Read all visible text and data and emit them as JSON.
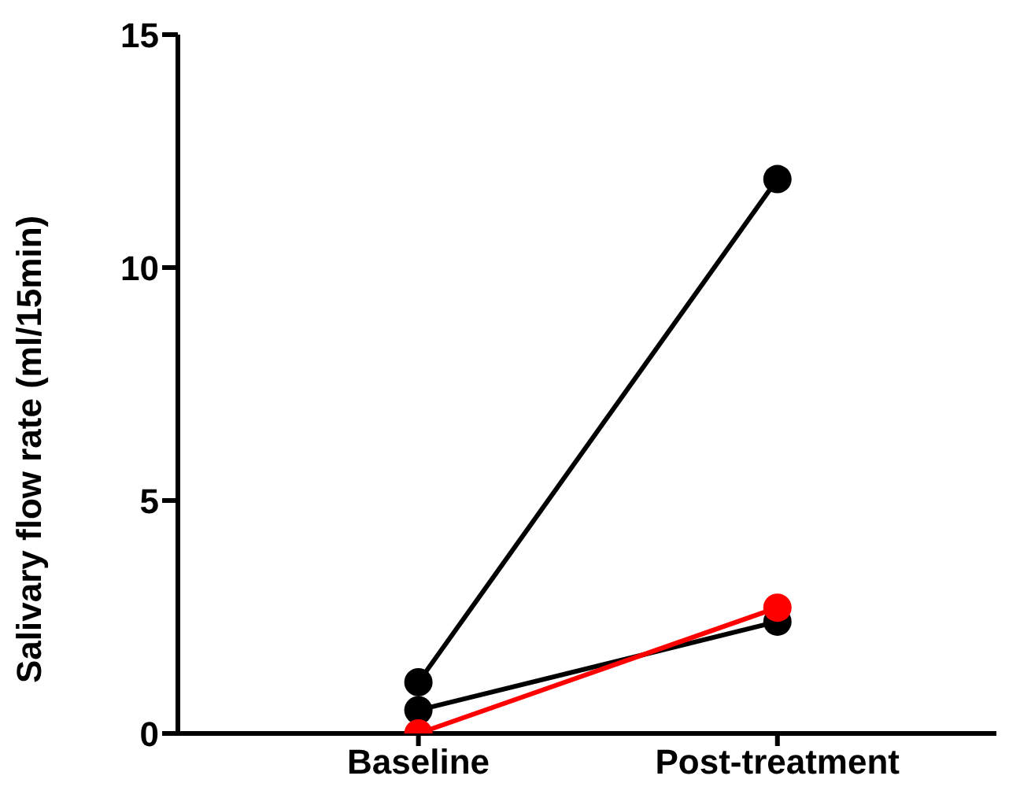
{
  "chart_data": {
    "type": "line",
    "ylabel": "Salivary flow rate (ml/15min)",
    "categories": [
      "Baseline",
      "Post-treatment"
    ],
    "series": [
      {
        "color": "#000000",
        "values": [
          1.1,
          11.9
        ]
      },
      {
        "color": "#000000",
        "values": [
          0.5,
          2.4
        ]
      },
      {
        "color": "#ff0000",
        "values": [
          0,
          2.7
        ]
      }
    ],
    "ylim": [
      0,
      15
    ],
    "yticks": [
      0,
      5,
      10,
      15
    ],
    "grid": false,
    "marker": "circle",
    "line_style": "solid"
  }
}
